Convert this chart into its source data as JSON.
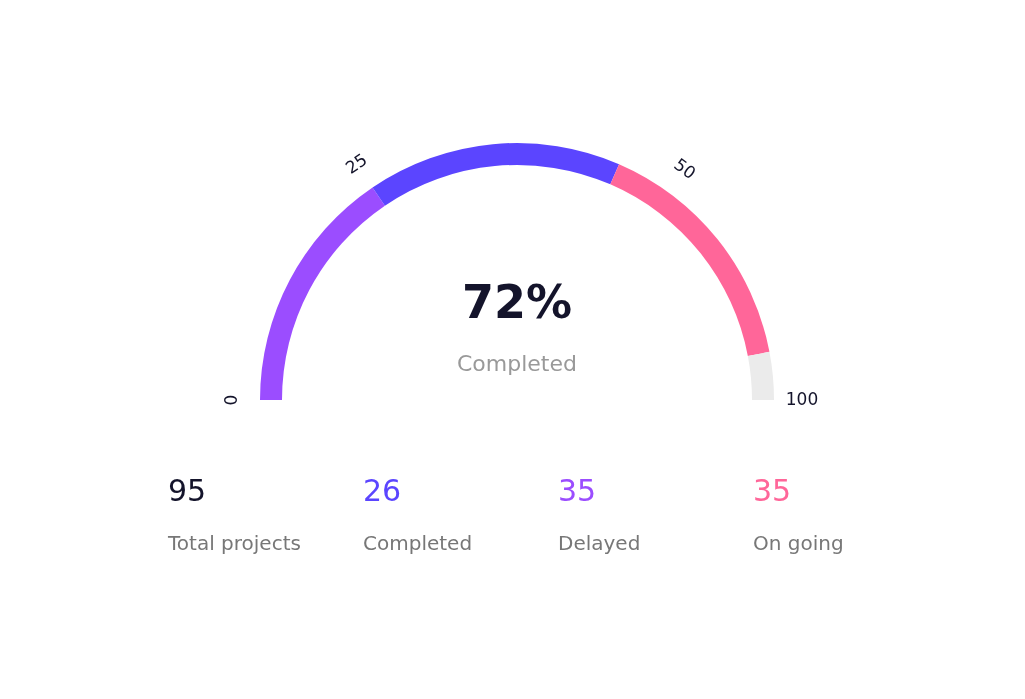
{
  "chart_data": [
    {
      "type": "donut",
      "categories": [
        null,
        null,
        null,
        null
      ],
      "values": [
        31,
        32,
        31,
        6
      ],
      "colors": [
        "#9b4dff",
        "#5b45ff",
        "#ff6699",
        "#ebebeb"
      ],
      "annotations": [
        "0",
        "25",
        "50",
        "100",
        "72%",
        "Completed"
      ]
    },
    {
      "type": "other",
      "annotations": [
        "95",
        "Total projects",
        "26",
        "Completed",
        "35",
        "Delayed",
        "35",
        "On going"
      ]
    }
  ]
}
